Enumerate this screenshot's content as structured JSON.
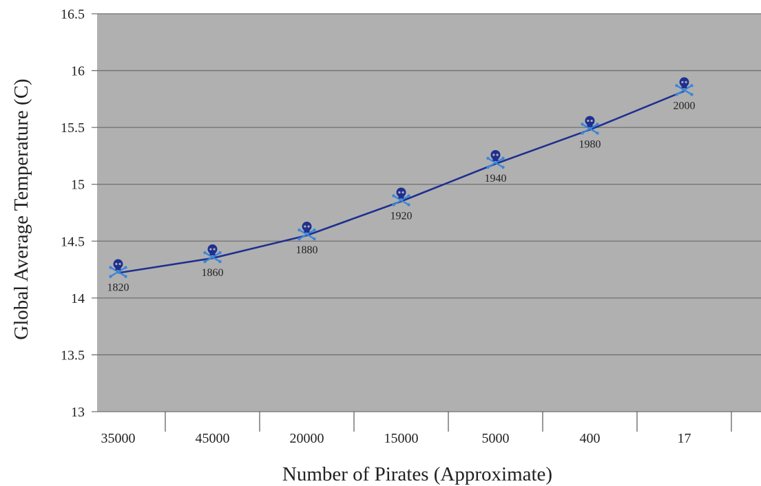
{
  "chart_data": {
    "type": "line",
    "title": "",
    "xlabel": "Number of Pirates (Approximate)",
    "ylabel": "Global Average Temperature (C)",
    "categories": [
      "35000",
      "45000",
      "20000",
      "15000",
      "5000",
      "400",
      "17"
    ],
    "series": [
      {
        "values": [
          14.22,
          14.35,
          14.55,
          14.85,
          15.18,
          15.48,
          15.82
        ],
        "point_labels": [
          "1820",
          "1860",
          "1880",
          "1920",
          "1940",
          "1980",
          "2000"
        ],
        "color": "#1f2f8f"
      }
    ],
    "ylim": [
      13,
      16.5
    ],
    "yticks": [
      "13",
      "13.5",
      "14",
      "14.5",
      "15",
      "15.5",
      "16",
      "16.5"
    ],
    "grid": true,
    "legend": "none",
    "marker_icon": "skull-and-crossbones-icon",
    "colors": {
      "plot_background": "#b0b0b0",
      "gridline": "#707070",
      "line": "#1f2f8f",
      "skull": "#1f2f8f",
      "crossbones": "#3a86d8"
    }
  }
}
